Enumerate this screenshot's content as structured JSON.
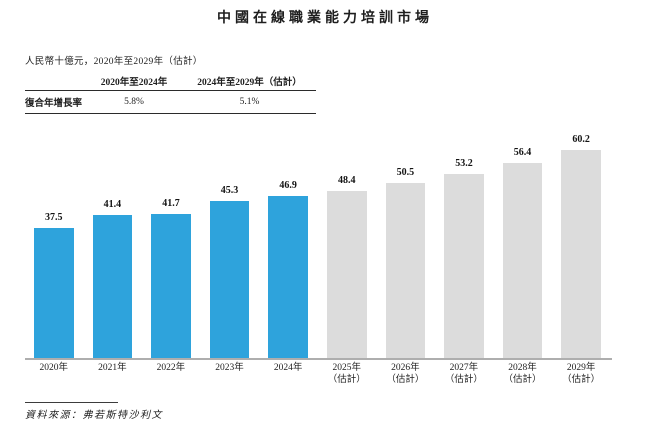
{
  "page": {
    "title": "中國在線職業能力培訓市場",
    "subtitle": "人民幣十億元，2020年至2029年（估計）",
    "source": "資料來源：弗若斯特沙利文"
  },
  "cagr_table": {
    "row_header": "復合年增長率",
    "columns": [
      {
        "label": "2020年至2024年",
        "value": "5.8%"
      },
      {
        "label": "2024年至2029年（估計）",
        "value": "5.1%"
      }
    ]
  },
  "chart_data": {
    "type": "bar",
    "title": "中國在線職業能力培訓市場",
    "unit_label": "人民幣十億元",
    "categories": [
      "2020年",
      "2021年",
      "2022年",
      "2023年",
      "2024年",
      "2025年（估計）",
      "2026年（估計）",
      "2027年（估計）",
      "2028年（估計）",
      "2029年（估計）"
    ],
    "values": [
      37.5,
      41.4,
      41.7,
      45.3,
      46.9,
      48.4,
      50.5,
      53.2,
      56.4,
      60.2
    ],
    "estimate_start_index": 5,
    "ylim": [
      0,
      63
    ],
    "grid": false,
    "legend": "none",
    "value_labels": true,
    "colors": {
      "actual": "#2EA3DC",
      "estimate": "#DCDCDC",
      "axis": "#AEAEAE"
    }
  }
}
